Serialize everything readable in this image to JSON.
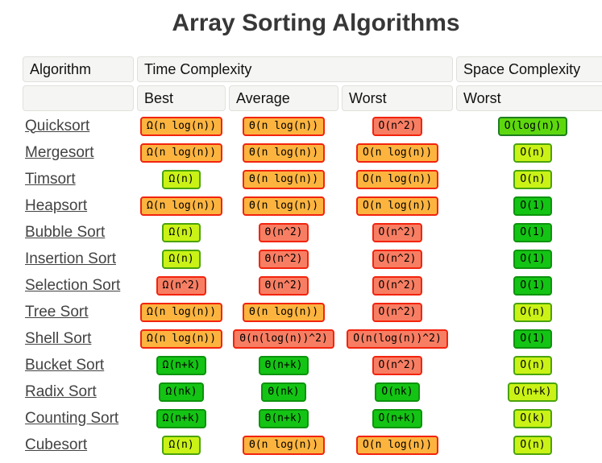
{
  "title": "Array Sorting Algorithms",
  "table": {
    "headers": {
      "algorithm": "Algorithm",
      "time": "Time Complexity",
      "space": "Space Complexity",
      "sub_best": "Best",
      "sub_average": "Average",
      "sub_worst": "Worst",
      "sub_space_worst": "Worst"
    },
    "rows": [
      {
        "name": "Quicksort",
        "best": {
          "text": "Ω(n log(n))",
          "level": "orange"
        },
        "average": {
          "text": "Θ(n log(n))",
          "level": "orange"
        },
        "worst": {
          "text": "O(n^2)",
          "level": "red"
        },
        "space": {
          "text": "O(log(n))",
          "level": "green-bright"
        }
      },
      {
        "name": "Mergesort",
        "best": {
          "text": "Ω(n log(n))",
          "level": "orange"
        },
        "average": {
          "text": "Θ(n log(n))",
          "level": "orange"
        },
        "worst": {
          "text": "O(n log(n))",
          "level": "orange"
        },
        "space": {
          "text": "O(n)",
          "level": "chartreuse"
        }
      },
      {
        "name": "Timsort",
        "best": {
          "text": "Ω(n)",
          "level": "chartreuse"
        },
        "average": {
          "text": "Θ(n log(n))",
          "level": "orange"
        },
        "worst": {
          "text": "O(n log(n))",
          "level": "orange"
        },
        "space": {
          "text": "O(n)",
          "level": "chartreuse"
        }
      },
      {
        "name": "Heapsort",
        "best": {
          "text": "Ω(n log(n))",
          "level": "orange"
        },
        "average": {
          "text": "Θ(n log(n))",
          "level": "orange"
        },
        "worst": {
          "text": "O(n log(n))",
          "level": "orange"
        },
        "space": {
          "text": "O(1)",
          "level": "green"
        }
      },
      {
        "name": "Bubble Sort",
        "best": {
          "text": "Ω(n)",
          "level": "chartreuse"
        },
        "average": {
          "text": "Θ(n^2)",
          "level": "red"
        },
        "worst": {
          "text": "O(n^2)",
          "level": "red"
        },
        "space": {
          "text": "O(1)",
          "level": "green"
        }
      },
      {
        "name": "Insertion Sort",
        "best": {
          "text": "Ω(n)",
          "level": "chartreuse"
        },
        "average": {
          "text": "Θ(n^2)",
          "level": "red"
        },
        "worst": {
          "text": "O(n^2)",
          "level": "red"
        },
        "space": {
          "text": "O(1)",
          "level": "green"
        }
      },
      {
        "name": "Selection Sort",
        "best": {
          "text": "Ω(n^2)",
          "level": "red"
        },
        "average": {
          "text": "Θ(n^2)",
          "level": "red"
        },
        "worst": {
          "text": "O(n^2)",
          "level": "red"
        },
        "space": {
          "text": "O(1)",
          "level": "green"
        }
      },
      {
        "name": "Tree Sort",
        "best": {
          "text": "Ω(n log(n))",
          "level": "orange"
        },
        "average": {
          "text": "Θ(n log(n))",
          "level": "orange"
        },
        "worst": {
          "text": "O(n^2)",
          "level": "red"
        },
        "space": {
          "text": "O(n)",
          "level": "chartreuse"
        }
      },
      {
        "name": "Shell Sort",
        "best": {
          "text": "Ω(n log(n))",
          "level": "orange"
        },
        "average": {
          "text": "Θ(n(log(n))^2)",
          "level": "red"
        },
        "worst": {
          "text": "O(n(log(n))^2)",
          "level": "red"
        },
        "space": {
          "text": "O(1)",
          "level": "green"
        }
      },
      {
        "name": "Bucket Sort",
        "best": {
          "text": "Ω(n+k)",
          "level": "green"
        },
        "average": {
          "text": "Θ(n+k)",
          "level": "green"
        },
        "worst": {
          "text": "O(n^2)",
          "level": "red"
        },
        "space": {
          "text": "O(n)",
          "level": "chartreuse"
        }
      },
      {
        "name": "Radix Sort",
        "best": {
          "text": "Ω(nk)",
          "level": "green"
        },
        "average": {
          "text": "Θ(nk)",
          "level": "green"
        },
        "worst": {
          "text": "O(nk)",
          "level": "green"
        },
        "space": {
          "text": "O(n+k)",
          "level": "chartreuse"
        }
      },
      {
        "name": "Counting Sort",
        "best": {
          "text": "Ω(n+k)",
          "level": "green"
        },
        "average": {
          "text": "Θ(n+k)",
          "level": "green"
        },
        "worst": {
          "text": "O(n+k)",
          "level": "green"
        },
        "space": {
          "text": "O(k)",
          "level": "chartreuse"
        }
      },
      {
        "name": "Cubesort",
        "best": {
          "text": "Ω(n)",
          "level": "chartreuse"
        },
        "average": {
          "text": "Θ(n log(n))",
          "level": "orange"
        },
        "worst": {
          "text": "O(n log(n))",
          "level": "orange"
        },
        "space": {
          "text": "O(n)",
          "level": "chartreuse"
        }
      }
    ]
  },
  "colors": {
    "orange": {
      "bg": "#fcb43f",
      "border": "#f2240e"
    },
    "red": {
      "bg": "#f87e63",
      "border": "#f2240e"
    },
    "chartreuse": {
      "bg": "#caf216",
      "border": "#4aa30d"
    },
    "green": {
      "bg": "#14c414",
      "border": "#0d930d"
    },
    "green-bright": {
      "bg": "#5ed80e",
      "border": "#1e7e1e"
    }
  }
}
